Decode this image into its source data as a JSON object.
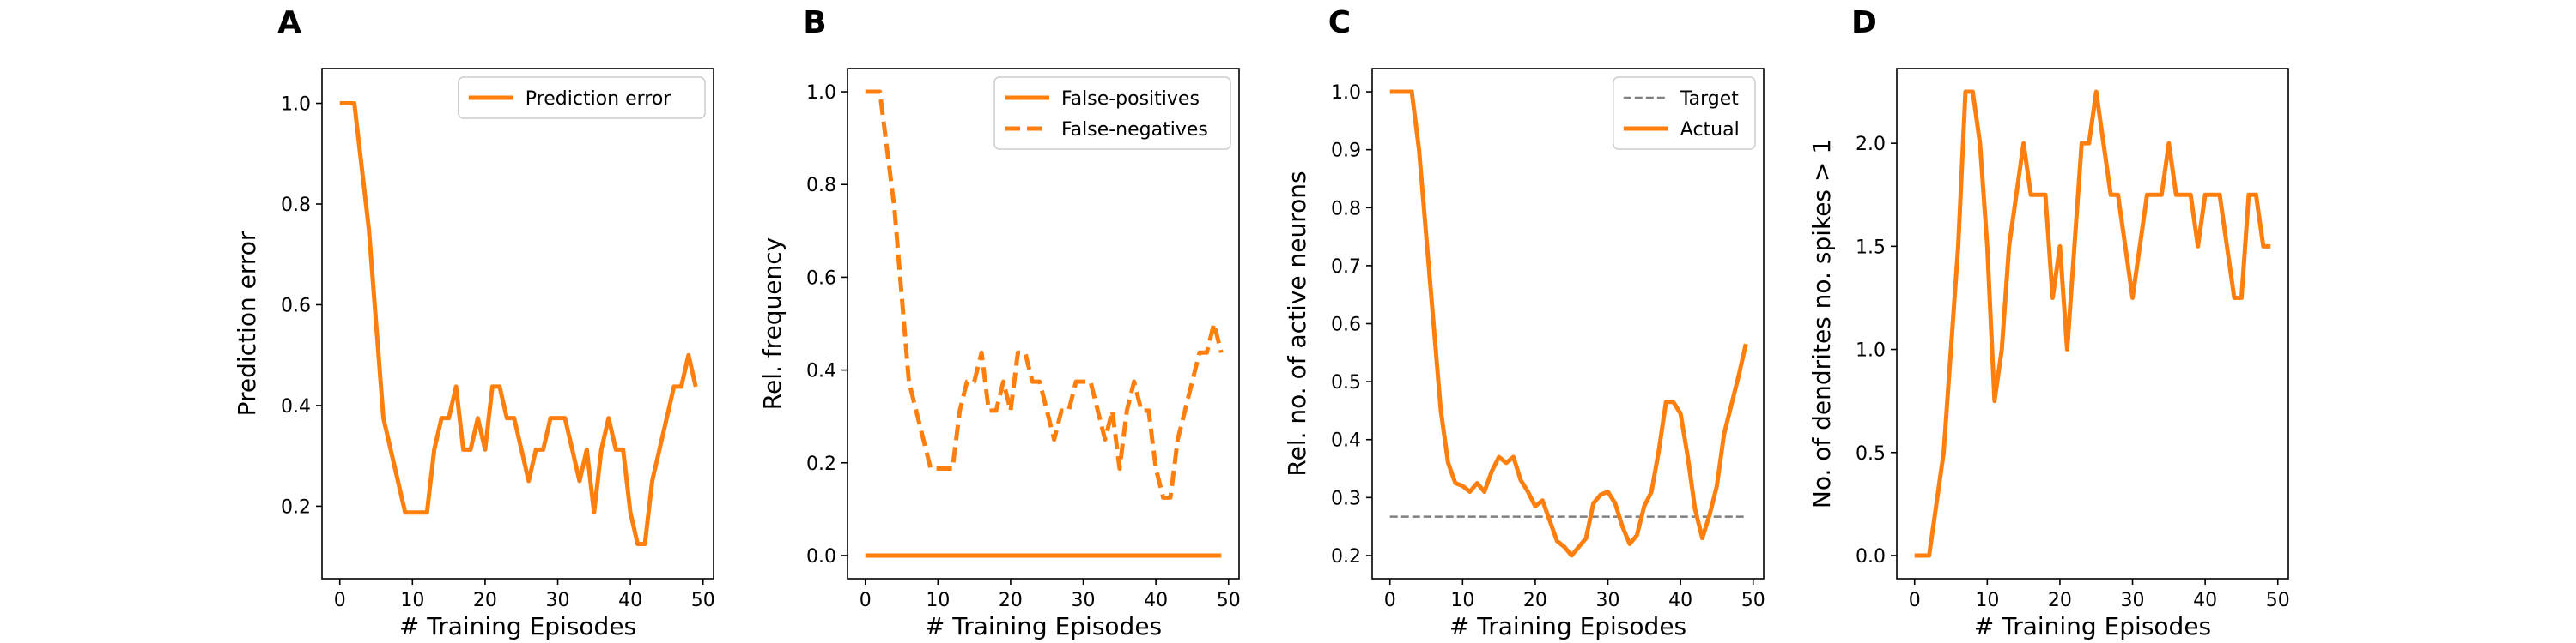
{
  "colors": {
    "series": "#ff7f0e",
    "target": "#7f7f7f",
    "axis": "#000000",
    "legend_border": "#cccccc"
  },
  "chart_data": [
    {
      "panel_label": "A",
      "type": "line",
      "xlabel": "# Training Episodes",
      "ylabel": "Prediction error",
      "xlim": [
        -2.45,
        51.45
      ],
      "ylim": [
        0.056,
        1.069
      ],
      "xticks": [
        0,
        10,
        20,
        30,
        40,
        50
      ],
      "yticks": [
        0.2,
        0.4,
        0.6,
        0.8,
        1.0
      ],
      "ytick_labels": [
        "0.2",
        "0.4",
        "0.6",
        "0.8",
        "1.0"
      ],
      "legend_position": "upper-right",
      "series": [
        {
          "name": "Prediction error",
          "style": "solid",
          "x": [
            0,
            1,
            2,
            3,
            4,
            5,
            6,
            7,
            8,
            9,
            10,
            11,
            12,
            13,
            14,
            15,
            16,
            17,
            18,
            19,
            20,
            21,
            22,
            23,
            24,
            25,
            26,
            27,
            28,
            29,
            30,
            31,
            32,
            33,
            34,
            35,
            36,
            37,
            38,
            39,
            40,
            41,
            42,
            43,
            44,
            45,
            46,
            47,
            48,
            49
          ],
          "y": [
            1.0,
            1.0,
            1.0,
            0.875,
            0.75,
            0.5625,
            0.375,
            0.3125,
            0.25,
            0.1875,
            0.1875,
            0.1875,
            0.1875,
            0.3125,
            0.375,
            0.375,
            0.4375,
            0.3125,
            0.3125,
            0.375,
            0.3125,
            0.4375,
            0.4375,
            0.375,
            0.375,
            0.3125,
            0.25,
            0.3125,
            0.3125,
            0.375,
            0.375,
            0.375,
            0.3125,
            0.25,
            0.3125,
            0.1875,
            0.3125,
            0.375,
            0.3125,
            0.3125,
            0.1875,
            0.125,
            0.125,
            0.25,
            0.3125,
            0.375,
            0.4375,
            0.4375,
            0.5,
            0.4375
          ]
        }
      ]
    },
    {
      "panel_label": "B",
      "type": "line",
      "xlabel": "# Training Episodes",
      "ylabel": "Rel. frequency",
      "xlim": [
        -2.45,
        51.45
      ],
      "ylim": [
        -0.05,
        1.05
      ],
      "xticks": [
        0,
        10,
        20,
        30,
        40,
        50
      ],
      "yticks": [
        0.0,
        0.2,
        0.4,
        0.6,
        0.8,
        1.0
      ],
      "ytick_labels": [
        "0.0",
        "0.2",
        "0.4",
        "0.6",
        "0.8",
        "1.0"
      ],
      "legend_position": "upper-right",
      "series": [
        {
          "name": "False-positives",
          "style": "solid",
          "x": [
            0,
            49
          ],
          "y": [
            0,
            0
          ]
        },
        {
          "name": "False-negatives",
          "style": "dashed",
          "x": [
            0,
            1,
            2,
            3,
            4,
            5,
            6,
            7,
            8,
            9,
            10,
            11,
            12,
            13,
            14,
            15,
            16,
            17,
            18,
            19,
            20,
            21,
            22,
            23,
            24,
            25,
            26,
            27,
            28,
            29,
            30,
            31,
            32,
            33,
            34,
            35,
            36,
            37,
            38,
            39,
            40,
            41,
            42,
            43,
            44,
            45,
            46,
            47,
            48,
            49
          ],
          "y": [
            1.0,
            1.0,
            1.0,
            0.875,
            0.75,
            0.5625,
            0.375,
            0.3125,
            0.25,
            0.1875,
            0.1875,
            0.1875,
            0.1875,
            0.3125,
            0.375,
            0.375,
            0.4375,
            0.3125,
            0.3125,
            0.375,
            0.3125,
            0.4375,
            0.4375,
            0.375,
            0.375,
            0.3125,
            0.25,
            0.3125,
            0.3125,
            0.375,
            0.375,
            0.375,
            0.3125,
            0.25,
            0.3125,
            0.1875,
            0.3125,
            0.375,
            0.3125,
            0.3125,
            0.1875,
            0.125,
            0.125,
            0.25,
            0.3125,
            0.375,
            0.4375,
            0.4375,
            0.5,
            0.4375
          ]
        }
      ]
    },
    {
      "panel_label": "C",
      "type": "line",
      "xlabel": "# Training Episodes",
      "ylabel": "Rel. no. of active neurons",
      "xlim": [
        -2.45,
        51.45
      ],
      "ylim": [
        0.16,
        1.04
      ],
      "xticks": [
        0,
        10,
        20,
        30,
        40,
        50
      ],
      "yticks": [
        0.2,
        0.3,
        0.4,
        0.5,
        0.6,
        0.7,
        0.8,
        0.9,
        1.0
      ],
      "ytick_labels": [
        "0.2",
        "0.3",
        "0.4",
        "0.5",
        "0.6",
        "0.7",
        "0.8",
        "0.9",
        "1.0"
      ],
      "legend_position": "upper-right",
      "series": [
        {
          "name": "Target",
          "style": "dashed-thin",
          "x": [
            0,
            49
          ],
          "y": [
            0.267,
            0.267
          ]
        },
        {
          "name": "Actual",
          "style": "solid",
          "x": [
            0,
            1,
            2,
            3,
            4,
            5,
            6,
            7,
            8,
            9,
            10,
            11,
            12,
            13,
            14,
            15,
            16,
            17,
            18,
            19,
            20,
            21,
            22,
            23,
            24,
            25,
            26,
            27,
            28,
            29,
            30,
            31,
            32,
            33,
            34,
            35,
            36,
            37,
            38,
            39,
            40,
            41,
            42,
            43,
            44,
            45,
            46,
            47,
            48,
            49
          ],
          "y": [
            1.0,
            1.0,
            1.0,
            1.0,
            0.9,
            0.75,
            0.6,
            0.45,
            0.36,
            0.325,
            0.32,
            0.31,
            0.325,
            0.31,
            0.345,
            0.37,
            0.36,
            0.37,
            0.33,
            0.31,
            0.285,
            0.295,
            0.26,
            0.225,
            0.215,
            0.2,
            0.215,
            0.23,
            0.29,
            0.305,
            0.31,
            0.29,
            0.25,
            0.22,
            0.235,
            0.285,
            0.31,
            0.38,
            0.465,
            0.465,
            0.445,
            0.37,
            0.28,
            0.23,
            0.27,
            0.32,
            0.41,
            0.46,
            0.51,
            0.565
          ]
        }
      ]
    },
    {
      "panel_label": "D",
      "type": "line",
      "xlabel": "# Training Episodes",
      "ylabel": "No. of dendrites no. spikes > 1",
      "xlim": [
        -2.45,
        51.45
      ],
      "ylim": [
        -0.1125,
        2.3625
      ],
      "xticks": [
        0,
        10,
        20,
        30,
        40,
        50
      ],
      "yticks": [
        0.0,
        0.5,
        1.0,
        1.5,
        2.0
      ],
      "ytick_labels": [
        "0.0",
        "0.5",
        "1.0",
        "1.5",
        "2.0"
      ],
      "legend_position": "none",
      "series": [
        {
          "name": "",
          "style": "solid",
          "x": [
            0,
            1,
            2,
            3,
            4,
            5,
            6,
            7,
            8,
            9,
            10,
            11,
            12,
            13,
            14,
            15,
            16,
            17,
            18,
            19,
            20,
            21,
            22,
            23,
            24,
            25,
            26,
            27,
            28,
            29,
            30,
            31,
            32,
            33,
            34,
            35,
            36,
            37,
            38,
            39,
            40,
            41,
            42,
            43,
            44,
            45,
            46,
            47,
            48,
            49
          ],
          "y": [
            0,
            0,
            0,
            0.25,
            0.5,
            1.0,
            1.5,
            2.25,
            2.25,
            2.0,
            1.5,
            0.75,
            1.0,
            1.5,
            1.75,
            2.0,
            1.75,
            1.75,
            1.75,
            1.25,
            1.5,
            1.0,
            1.5,
            2.0,
            2.0,
            2.25,
            2.0,
            1.75,
            1.75,
            1.5,
            1.25,
            1.5,
            1.75,
            1.75,
            1.75,
            2.0,
            1.75,
            1.75,
            1.75,
            1.5,
            1.75,
            1.75,
            1.75,
            1.5,
            1.25,
            1.25,
            1.75,
            1.75,
            1.5,
            1.5
          ]
        }
      ]
    }
  ]
}
